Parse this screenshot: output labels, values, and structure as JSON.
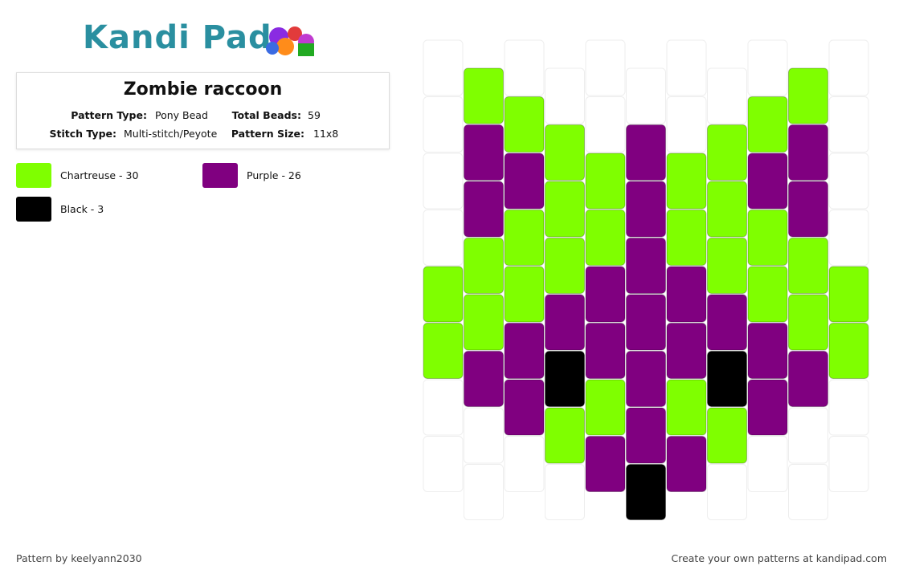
{
  "logo": "Kandi Pad",
  "title": "Zombie raccoon",
  "info": [
    {
      "label": "Pattern Type:",
      "value": "Pony Bead"
    },
    {
      "label": "Total Beads:",
      "value": "59"
    },
    {
      "label": "Stitch Type:",
      "value": "Multi-stitch/Peyote"
    },
    {
      "label": "Pattern Size:",
      "value": "11x8"
    }
  ],
  "legend": [
    {
      "label": "Chartreuse - 30",
      "color": "#7fff00"
    },
    {
      "label": "Purple - 26",
      "color": "#800080"
    },
    {
      "label": "Black - 3",
      "color": "#000000"
    }
  ],
  "grid": [
    [
      null,
      null,
      null,
      null,
      0,
      0,
      null,
      null
    ],
    [
      0,
      1,
      1,
      0,
      0,
      1,
      null,
      null
    ],
    [
      null,
      0,
      1,
      0,
      0,
      1,
      1,
      null
    ],
    [
      null,
      0,
      0,
      0,
      1,
      2,
      0,
      null
    ],
    [
      null,
      null,
      0,
      0,
      1,
      1,
      0,
      1
    ],
    [
      null,
      1,
      1,
      1,
      1,
      1,
      1,
      2
    ],
    [
      null,
      null,
      0,
      0,
      1,
      1,
      0,
      1
    ],
    [
      null,
      0,
      0,
      0,
      1,
      2,
      0,
      null
    ],
    [
      null,
      0,
      1,
      0,
      0,
      1,
      1,
      null
    ],
    [
      0,
      1,
      1,
      0,
      0,
      1,
      null,
      null
    ],
    [
      null,
      null,
      null,
      null,
      0,
      0,
      null,
      null
    ]
  ],
  "footer_left": "Pattern by keelyann2030",
  "footer_right": "Create your own patterns at kandipad.com"
}
